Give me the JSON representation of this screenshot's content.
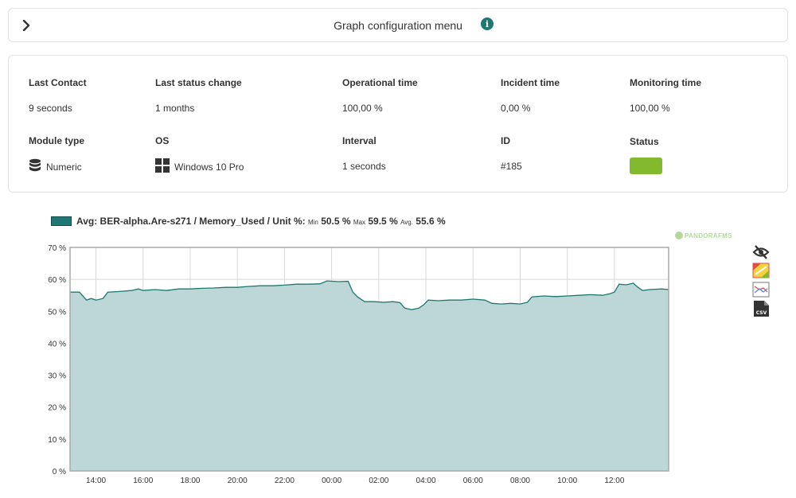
{
  "config_bar": {
    "title": "Graph configuration menu",
    "info_symbol": "i"
  },
  "info": {
    "last_contact": {
      "label": "Last Contact",
      "value": "9 seconds"
    },
    "last_status_change": {
      "label": "Last status change",
      "value": "1 months"
    },
    "operational_time": {
      "label": "Operational time",
      "value": "100,00 %"
    },
    "incident_time": {
      "label": "Incident time",
      "value": "0,00 %"
    },
    "monitoring_time": {
      "label": "Monitoring time",
      "value": "100,00 %"
    },
    "module_type": {
      "label": "Module type",
      "value": "Numeric",
      "icon": "database-icon"
    },
    "os": {
      "label": "OS",
      "value": "Windows 10 Pro",
      "icon": "windows-icon"
    },
    "interval": {
      "label": "Interval",
      "value": "1 seconds"
    },
    "id": {
      "label": "ID",
      "value": "#185"
    },
    "status": {
      "label": "Status",
      "color": "#82b92e"
    }
  },
  "legend": {
    "prefix": "Avg: BER-alpha.Are-s271 / Memory_Used / Unit %:",
    "min_label": "Min",
    "min_value": "50.5 %",
    "max_label": "Max",
    "max_value": "59.5 %",
    "avg_label": "Avg.",
    "avg_value": "55.6 %",
    "color": "#1d7873"
  },
  "watermark": "PANDORAFMS",
  "tools": [
    "hide-icon",
    "zoom-graph-icon",
    "image-export-icon",
    "csv-export-icon"
  ],
  "chart_data": {
    "type": "area",
    "title": "",
    "xlabel": "",
    "ylabel": "",
    "series_name": "Avg: BER-alpha.Are-s271 / Memory_Used / Unit %",
    "x_ticks": [
      "14:00",
      "16:00",
      "18:00",
      "20:00",
      "22:00",
      "00:00",
      "02:00",
      "04:00",
      "06:00",
      "08:00",
      "10:00",
      "12:00"
    ],
    "y_ticks": [
      "0 %",
      "10 %",
      "20 %",
      "30 %",
      "40 %",
      "50 %",
      "60 %",
      "70 %"
    ],
    "ylim": [
      0,
      70
    ],
    "x_range_hours": [
      12.9,
      36.8
    ],
    "grid": true,
    "fill_color": "#bcd7d6",
    "line_color": "#1d7873",
    "points": [
      [
        12.9,
        56.0
      ],
      [
        13.3,
        56.0
      ],
      [
        13.6,
        53.5
      ],
      [
        13.8,
        54.0
      ],
      [
        14.0,
        53.5
      ],
      [
        14.3,
        54.0
      ],
      [
        14.5,
        56.0
      ],
      [
        15.0,
        56.2
      ],
      [
        15.5,
        56.5
      ],
      [
        15.8,
        57.0
      ],
      [
        16.0,
        56.5
      ],
      [
        16.5,
        56.8
      ],
      [
        17.0,
        56.5
      ],
      [
        17.5,
        57.0
      ],
      [
        18.0,
        57.0
      ],
      [
        18.5,
        57.2
      ],
      [
        19.0,
        57.3
      ],
      [
        19.5,
        57.5
      ],
      [
        20.0,
        57.5
      ],
      [
        20.5,
        57.8
      ],
      [
        21.0,
        58.0
      ],
      [
        21.5,
        58.0
      ],
      [
        22.0,
        58.2
      ],
      [
        22.5,
        58.5
      ],
      [
        23.0,
        58.5
      ],
      [
        23.5,
        58.6
      ],
      [
        23.8,
        59.5
      ],
      [
        24.3,
        59.3
      ],
      [
        24.7,
        59.4
      ],
      [
        24.9,
        56.0
      ],
      [
        25.1,
        54.5
      ],
      [
        25.4,
        53.0
      ],
      [
        25.8,
        53.0
      ],
      [
        26.2,
        52.8
      ],
      [
        26.6,
        53.0
      ],
      [
        26.9,
        52.7
      ],
      [
        27.1,
        51.0
      ],
      [
        27.4,
        50.5
      ],
      [
        27.7,
        51.0
      ],
      [
        27.9,
        52.0
      ],
      [
        28.1,
        53.5
      ],
      [
        28.5,
        53.3
      ],
      [
        29.0,
        53.5
      ],
      [
        29.5,
        53.5
      ],
      [
        30.0,
        53.8
      ],
      [
        30.5,
        53.5
      ],
      [
        30.8,
        52.5
      ],
      [
        31.2,
        52.3
      ],
      [
        31.6,
        52.5
      ],
      [
        32.0,
        52.3
      ],
      [
        32.3,
        52.8
      ],
      [
        32.5,
        54.5
      ],
      [
        33.0,
        54.8
      ],
      [
        33.5,
        54.6
      ],
      [
        34.0,
        54.8
      ],
      [
        34.5,
        55.0
      ],
      [
        35.0,
        55.2
      ],
      [
        35.5,
        55.0
      ],
      [
        35.8,
        55.5
      ],
      [
        36.0,
        56.0
      ],
      [
        36.2,
        58.5
      ],
      [
        36.5,
        58.3
      ],
      [
        36.8,
        58.8
      ],
      [
        37.0,
        57.5
      ],
      [
        37.2,
        56.5
      ],
      [
        37.5,
        56.8
      ],
      [
        38.0,
        57.0
      ],
      [
        38.3,
        56.8
      ]
    ]
  }
}
